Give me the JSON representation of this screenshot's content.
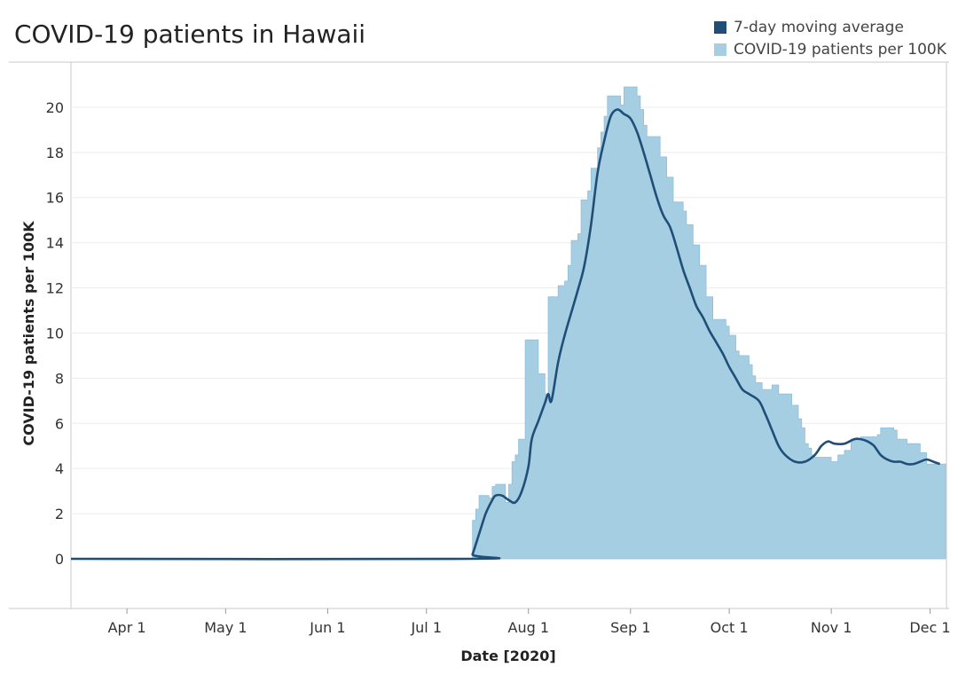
{
  "chart_data": {
    "type": "area",
    "title": "COVID-19 patients in Hawaii",
    "xlabel": "Date [2020]",
    "ylabel": "COVID-19 patients per 100K",
    "x_range": [
      "2020-03-15",
      "2020-12-06"
    ],
    "ylim": [
      -2.2,
      22
    ],
    "y_ticks": [
      0,
      2,
      4,
      6,
      8,
      10,
      12,
      14,
      16,
      18,
      20
    ],
    "x_ticks": [
      {
        "date": "2020-04-01",
        "label": "Apr 1"
      },
      {
        "date": "2020-05-01",
        "label": "May 1"
      },
      {
        "date": "2020-06-01",
        "label": "Jun 1"
      },
      {
        "date": "2020-07-01",
        "label": "Jul 1"
      },
      {
        "date": "2020-08-01",
        "label": "Aug 1"
      },
      {
        "date": "2020-09-01",
        "label": "Sep 1"
      },
      {
        "date": "2020-10-01",
        "label": "Oct 1"
      },
      {
        "date": "2020-11-01",
        "label": "Nov 1"
      },
      {
        "date": "2020-12-01",
        "label": "Dec 1"
      }
    ],
    "grid": "horizontal",
    "legend_position": "top-right",
    "series": [
      {
        "name": "COVID-19 patients per 100K",
        "style": "step-area",
        "color": "#a6cee3",
        "points": [
          [
            "2020-03-15",
            0
          ],
          [
            "2020-07-14",
            0
          ],
          [
            "2020-07-15",
            1.7
          ],
          [
            "2020-07-16",
            2.2
          ],
          [
            "2020-07-17",
            2.8
          ],
          [
            "2020-07-20",
            2.7
          ],
          [
            "2020-07-21",
            3.2
          ],
          [
            "2020-07-22",
            3.3
          ],
          [
            "2020-07-25",
            2.5
          ],
          [
            "2020-07-26",
            3.3
          ],
          [
            "2020-07-27",
            4.3
          ],
          [
            "2020-07-28",
            4.6
          ],
          [
            "2020-07-29",
            5.3
          ],
          [
            "2020-07-31",
            9.7
          ],
          [
            "2020-08-04",
            8.2
          ],
          [
            "2020-08-06",
            7.3
          ],
          [
            "2020-08-07",
            11.6
          ],
          [
            "2020-08-10",
            12.1
          ],
          [
            "2020-08-12",
            12.3
          ],
          [
            "2020-08-13",
            13.0
          ],
          [
            "2020-08-14",
            14.1
          ],
          [
            "2020-08-16",
            14.4
          ],
          [
            "2020-08-17",
            15.9
          ],
          [
            "2020-08-19",
            16.3
          ],
          [
            "2020-08-20",
            17.3
          ],
          [
            "2020-08-22",
            18.2
          ],
          [
            "2020-08-23",
            18.9
          ],
          [
            "2020-08-24",
            19.6
          ],
          [
            "2020-08-25",
            20.5
          ],
          [
            "2020-08-29",
            20.1
          ],
          [
            "2020-08-30",
            20.9
          ],
          [
            "2020-09-03",
            20.5
          ],
          [
            "2020-09-04",
            19.9
          ],
          [
            "2020-09-05",
            19.2
          ],
          [
            "2020-09-06",
            18.7
          ],
          [
            "2020-09-10",
            17.8
          ],
          [
            "2020-09-12",
            16.9
          ],
          [
            "2020-09-14",
            15.8
          ],
          [
            "2020-09-17",
            15.4
          ],
          [
            "2020-09-18",
            14.8
          ],
          [
            "2020-09-20",
            13.9
          ],
          [
            "2020-09-22",
            13.0
          ],
          [
            "2020-09-24",
            11.6
          ],
          [
            "2020-09-26",
            10.6
          ],
          [
            "2020-09-30",
            10.3
          ],
          [
            "2020-10-01",
            9.9
          ],
          [
            "2020-10-03",
            9.2
          ],
          [
            "2020-10-04",
            9.0
          ],
          [
            "2020-10-07",
            8.6
          ],
          [
            "2020-10-08",
            8.1
          ],
          [
            "2020-10-09",
            7.8
          ],
          [
            "2020-10-11",
            7.5
          ],
          [
            "2020-10-14",
            7.7
          ],
          [
            "2020-10-16",
            7.3
          ],
          [
            "2020-10-20",
            6.8
          ],
          [
            "2020-10-22",
            6.2
          ],
          [
            "2020-10-23",
            5.8
          ],
          [
            "2020-10-24",
            5.1
          ],
          [
            "2020-10-25",
            4.9
          ],
          [
            "2020-10-26",
            4.6
          ],
          [
            "2020-10-27",
            4.5
          ],
          [
            "2020-10-31",
            4.5
          ],
          [
            "2020-11-01",
            4.3
          ],
          [
            "2020-11-03",
            4.6
          ],
          [
            "2020-11-05",
            4.8
          ],
          [
            "2020-11-07",
            5.3
          ],
          [
            "2020-11-10",
            5.4
          ],
          [
            "2020-11-15",
            5.5
          ],
          [
            "2020-11-16",
            5.8
          ],
          [
            "2020-11-20",
            5.7
          ],
          [
            "2020-11-21",
            5.3
          ],
          [
            "2020-11-24",
            5.1
          ],
          [
            "2020-11-28",
            4.7
          ],
          [
            "2020-11-30",
            4.2
          ],
          [
            "2020-12-04",
            4.2
          ]
        ]
      },
      {
        "name": "7-day moving average",
        "style": "line",
        "color": "#1f4e79",
        "points": [
          [
            "2020-03-15",
            0
          ],
          [
            "2020-07-14",
            0
          ],
          [
            "2020-07-15",
            0.2
          ],
          [
            "2020-07-17",
            1.1
          ],
          [
            "2020-07-19",
            2.0
          ],
          [
            "2020-07-21",
            2.6
          ],
          [
            "2020-07-22",
            2.8
          ],
          [
            "2020-07-24",
            2.8
          ],
          [
            "2020-07-26",
            2.6
          ],
          [
            "2020-07-28",
            2.5
          ],
          [
            "2020-07-30",
            3.0
          ],
          [
            "2020-08-01",
            4.1
          ],
          [
            "2020-08-02",
            5.3
          ],
          [
            "2020-08-04",
            6.1
          ],
          [
            "2020-08-06",
            6.9
          ],
          [
            "2020-08-07",
            7.3
          ],
          [
            "2020-08-08",
            7.0
          ],
          [
            "2020-08-10",
            8.7
          ],
          [
            "2020-08-12",
            9.9
          ],
          [
            "2020-08-14",
            10.9
          ],
          [
            "2020-08-16",
            11.9
          ],
          [
            "2020-08-18",
            13.0
          ],
          [
            "2020-08-20",
            14.8
          ],
          [
            "2020-08-22",
            17.1
          ],
          [
            "2020-08-24",
            18.5
          ],
          [
            "2020-08-26",
            19.6
          ],
          [
            "2020-08-28",
            19.9
          ],
          [
            "2020-08-30",
            19.7
          ],
          [
            "2020-09-01",
            19.5
          ],
          [
            "2020-09-03",
            18.9
          ],
          [
            "2020-09-05",
            18.0
          ],
          [
            "2020-09-07",
            17.0
          ],
          [
            "2020-09-09",
            16.0
          ],
          [
            "2020-09-11",
            15.2
          ],
          [
            "2020-09-13",
            14.7
          ],
          [
            "2020-09-15",
            13.8
          ],
          [
            "2020-09-17",
            12.8
          ],
          [
            "2020-09-19",
            12.0
          ],
          [
            "2020-09-21",
            11.2
          ],
          [
            "2020-09-23",
            10.7
          ],
          [
            "2020-09-25",
            10.1
          ],
          [
            "2020-09-27",
            9.6
          ],
          [
            "2020-09-29",
            9.1
          ],
          [
            "2020-10-01",
            8.5
          ],
          [
            "2020-10-03",
            8.0
          ],
          [
            "2020-10-05",
            7.5
          ],
          [
            "2020-10-07",
            7.3
          ],
          [
            "2020-10-10",
            7.0
          ],
          [
            "2020-10-12",
            6.4
          ],
          [
            "2020-10-14",
            5.7
          ],
          [
            "2020-10-16",
            5.0
          ],
          [
            "2020-10-18",
            4.6
          ],
          [
            "2020-10-21",
            4.3
          ],
          [
            "2020-10-24",
            4.3
          ],
          [
            "2020-10-27",
            4.6
          ],
          [
            "2020-10-29",
            5.0
          ],
          [
            "2020-10-31",
            5.2
          ],
          [
            "2020-11-02",
            5.1
          ],
          [
            "2020-11-05",
            5.1
          ],
          [
            "2020-11-08",
            5.3
          ],
          [
            "2020-11-10",
            5.3
          ],
          [
            "2020-11-12",
            5.2
          ],
          [
            "2020-11-14",
            5.0
          ],
          [
            "2020-11-16",
            4.6
          ],
          [
            "2020-11-18",
            4.4
          ],
          [
            "2020-11-20",
            4.3
          ],
          [
            "2020-11-22",
            4.3
          ],
          [
            "2020-11-24",
            4.2
          ],
          [
            "2020-11-26",
            4.2
          ],
          [
            "2020-11-28",
            4.3
          ],
          [
            "2020-11-30",
            4.4
          ],
          [
            "2020-12-02",
            4.3
          ],
          [
            "2020-12-04",
            4.2
          ]
        ]
      }
    ]
  },
  "legend": [
    {
      "label": "7-day moving average",
      "color": "#1f4e79"
    },
    {
      "label": "COVID-19 patients per 100K",
      "color": "#a6cee3"
    }
  ]
}
